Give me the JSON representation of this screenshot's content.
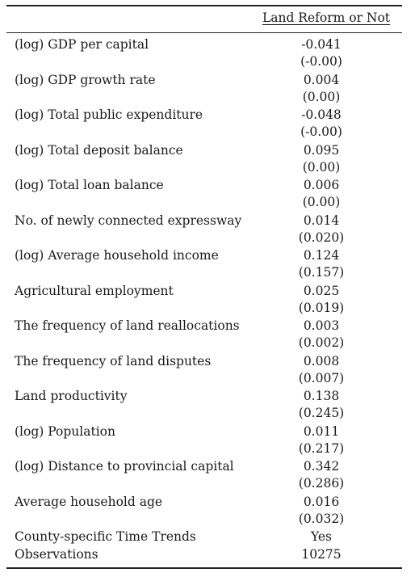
{
  "table": {
    "column_header": "Land Reform or Not",
    "rows": [
      {
        "label": "(log) GDP per capital",
        "coef": "-0.041",
        "se": "(-0.00)"
      },
      {
        "label": "(log) GDP growth rate",
        "coef": "0.004",
        "se": "(0.00)"
      },
      {
        "label": "(log) Total public expenditure",
        "coef": "-0.048",
        "se": "(-0.00)"
      },
      {
        "label": "(log) Total deposit balance",
        "coef": "0.095",
        "se": "(0.00)"
      },
      {
        "label": "(log) Total loan balance",
        "coef": "0.006",
        "se": "(0.00)"
      },
      {
        "label": "No. of newly connected expressway",
        "coef": "0.014",
        "se": "(0.020)"
      },
      {
        "label": "(log) Average household income",
        "coef": "0.124",
        "se": "(0.157)"
      },
      {
        "label": "Agricultural employment",
        "coef": "0.025",
        "se": "(0.019)"
      },
      {
        "label": "The frequency of land reallocations",
        "coef": "0.003",
        "se": "(0.002)"
      },
      {
        "label": "The frequency of land disputes",
        "coef": "0.008",
        "se": "(0.007)"
      },
      {
        "label": "Land productivity",
        "coef": "0.138",
        "se": "(0.245)"
      },
      {
        "label": "(log) Population",
        "coef": "0.011",
        "se": "(0.217)"
      },
      {
        "label": "(log) Distance to provincial capital",
        "coef": "0.342",
        "se": "(0.286)"
      },
      {
        "label": "Average household age",
        "coef": "0.016",
        "se": "(0.032)"
      }
    ],
    "footer": [
      {
        "label": "County-specific Time Trends",
        "value": "Yes"
      },
      {
        "label": "Observations",
        "value": "10275"
      }
    ]
  }
}
